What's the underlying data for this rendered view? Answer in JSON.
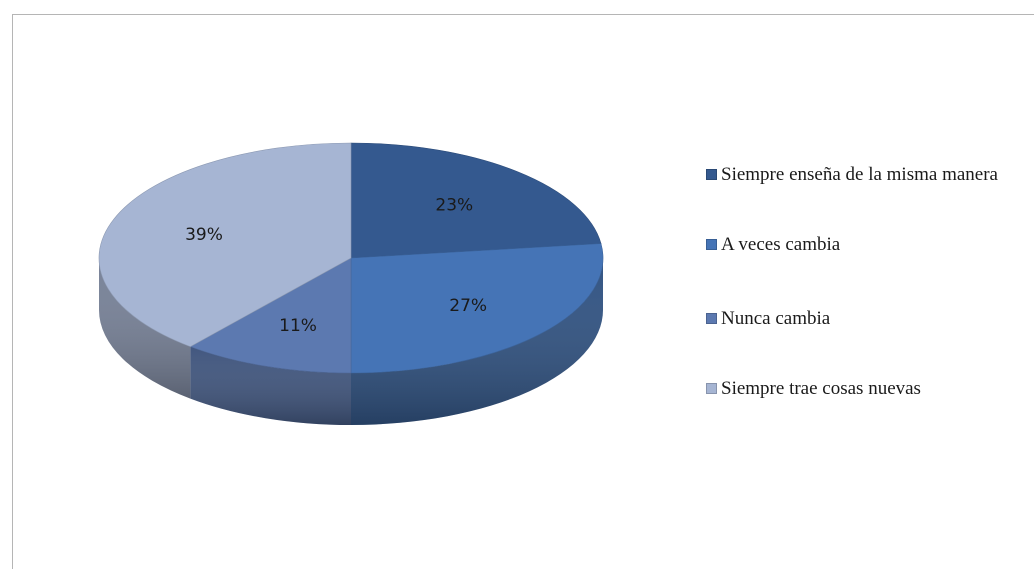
{
  "chart_data": {
    "type": "pie",
    "title": "",
    "categories": [
      "Siempre enseña de la misma manera",
      "A veces cambia",
      "Nunca cambia",
      "Siempre trae cosas nuevas"
    ],
    "values": [
      23,
      27,
      11,
      39
    ],
    "labels": [
      "23%",
      "27%",
      "11%",
      "39%"
    ],
    "colors": [
      "#34598f",
      "#4574b6",
      "#5c79b0",
      "#a6b5d3"
    ],
    "legend_position": "right",
    "three_d": true
  }
}
